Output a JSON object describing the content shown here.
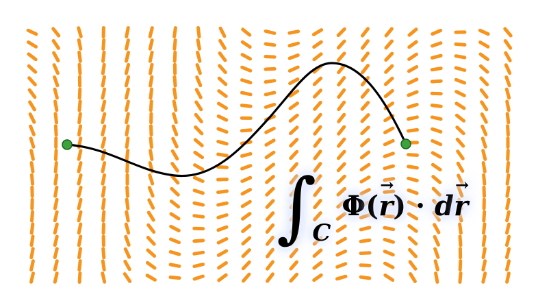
{
  "colors": {
    "field_dash": "#f7941d",
    "curve": "#000000",
    "endpoint": "#3aa33a",
    "endpoint_stroke": "#1e5e1e"
  },
  "formula": {
    "integral_sign": "∫",
    "subscript": "C",
    "integrand_phi": "Φ",
    "open_paren": "(",
    "vector_r": "r",
    "close_paren": ")",
    "dot": "·",
    "d": "d",
    "vector_dr": "r"
  }
}
